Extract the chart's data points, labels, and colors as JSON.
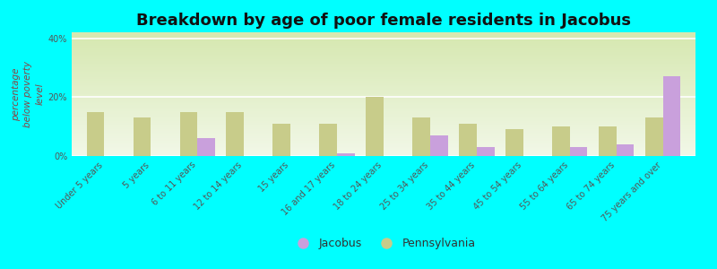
{
  "title": "Breakdown by age of poor female residents in Jacobus",
  "ylabel": "percentage\nbelow poverty\nlevel",
  "categories": [
    "Under 5 years",
    "5 years",
    "6 to 11 years",
    "12 to 14 years",
    "15 years",
    "16 and 17 years",
    "18 to 24 years",
    "25 to 34 years",
    "35 to 44 years",
    "45 to 54 years",
    "55 to 64 years",
    "65 to 74 years",
    "75 years and over"
  ],
  "jacobus_values": [
    0,
    0,
    6,
    0,
    0,
    1,
    0,
    7,
    3,
    0,
    3,
    4,
    27
  ],
  "pennsylvania_values": [
    15,
    13,
    15,
    15,
    11,
    11,
    20,
    13,
    11,
    9,
    10,
    10,
    13
  ],
  "jacobus_color": "#c9a0dc",
  "pennsylvania_color": "#c8cc8a",
  "background_color": "#00ffff",
  "plot_bg_top": "#d6e8b0",
  "plot_bg_bottom": "#f2f8e8",
  "ylim": [
    0,
    42
  ],
  "yticks": [
    0,
    20,
    40
  ],
  "ytick_labels": [
    "0%",
    "20%",
    "40%"
  ],
  "bar_width": 0.38,
  "legend_jacobus": "Jacobus",
  "legend_pennsylvania": "Pennsylvania",
  "title_fontsize": 13,
  "ylabel_fontsize": 7.5,
  "tick_fontsize": 7,
  "legend_fontsize": 9
}
